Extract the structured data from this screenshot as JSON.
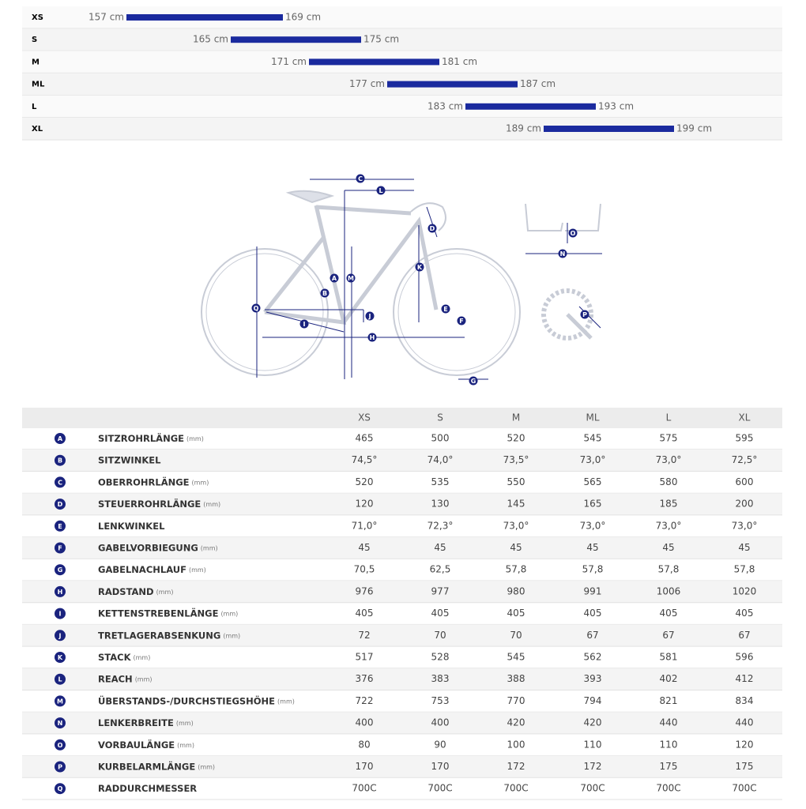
{
  "size_chart": {
    "rows": [
      {
        "size": "XS",
        "min": 157,
        "max": 169,
        "min_label": "157 cm",
        "max_label": "169 cm"
      },
      {
        "size": "S",
        "min": 165,
        "max": 175,
        "min_label": "165 cm",
        "max_label": "175 cm"
      },
      {
        "size": "M",
        "min": 171,
        "max": 181,
        "min_label": "171 cm",
        "max_label": "181 cm"
      },
      {
        "size": "ML",
        "min": 177,
        "max": 187,
        "min_label": "177 cm",
        "max_label": "187 cm"
      },
      {
        "size": "L",
        "min": 183,
        "max": 193,
        "min_label": "183 cm",
        "max_label": "193 cm"
      },
      {
        "size": "XL",
        "min": 189,
        "max": 199,
        "min_label": "189 cm",
        "max_label": "199 cm"
      }
    ]
  },
  "table": {
    "columns": [
      "XS",
      "S",
      "M",
      "ML",
      "L",
      "XL"
    ],
    "rows": [
      {
        "letter": "A",
        "name": "SITZROHRLÄNGE",
        "unit": "(mm)",
        "values": [
          "465",
          "500",
          "520",
          "545",
          "575",
          "595"
        ]
      },
      {
        "letter": "B",
        "name": "SITZWINKEL",
        "values": [
          "74,5°",
          "74,0°",
          "73,5°",
          "73,0°",
          "73,0°",
          "72,5°"
        ]
      },
      {
        "letter": "C",
        "name": "OBERROHRLÄNGE",
        "unit": "(mm)",
        "values": [
          "520",
          "535",
          "550",
          "565",
          "580",
          "600"
        ]
      },
      {
        "letter": "D",
        "name": "STEUERROHRLÄNGE",
        "unit": "(mm)",
        "values": [
          "120",
          "130",
          "145",
          "165",
          "185",
          "200"
        ]
      },
      {
        "letter": "E",
        "name": "LENKWINKEL",
        "values": [
          "71,0°",
          "72,3°",
          "73,0°",
          "73,0°",
          "73,0°",
          "73,0°"
        ]
      },
      {
        "letter": "F",
        "name": "GABELVORBIEGUNG",
        "unit": "(mm)",
        "values": [
          "45",
          "45",
          "45",
          "45",
          "45",
          "45"
        ]
      },
      {
        "letter": "G",
        "name": "GABELNACHLAUF",
        "unit": "(mm)",
        "values": [
          "70,5",
          "62,5",
          "57,8",
          "57,8",
          "57,8",
          "57,8"
        ]
      },
      {
        "letter": "H",
        "name": "RADSTAND",
        "unit": "(mm)",
        "values": [
          "976",
          "977",
          "980",
          "991",
          "1006",
          "1020"
        ]
      },
      {
        "letter": "I",
        "name": "KETTENSTREBENLÄNGE",
        "unit": "(mm)",
        "values": [
          "405",
          "405",
          "405",
          "405",
          "405",
          "405"
        ]
      },
      {
        "letter": "J",
        "name": "TRETLAGERABSENKUNG",
        "unit": "(mm)",
        "values": [
          "72",
          "70",
          "70",
          "67",
          "67",
          "67"
        ]
      },
      {
        "letter": "K",
        "name": "STACK",
        "unit": "(mm)",
        "values": [
          "517",
          "528",
          "545",
          "562",
          "581",
          "596"
        ]
      },
      {
        "letter": "L",
        "name": "REACH",
        "unit": "(mm)",
        "values": [
          "376",
          "383",
          "388",
          "393",
          "402",
          "412"
        ]
      },
      {
        "letter": "M",
        "name": "ÜBERSTANDS-/DURCHSTIEGSHÖHE",
        "unit": "(mm)",
        "values": [
          "722",
          "753",
          "770",
          "794",
          "821",
          "834"
        ]
      },
      {
        "letter": "N",
        "name": "LENKERBREITE",
        "unit": "(mm)",
        "values": [
          "400",
          "400",
          "420",
          "420",
          "440",
          "440"
        ]
      },
      {
        "letter": "O",
        "name": "VORBAULÄNGE",
        "unit": "(mm)",
        "values": [
          "80",
          "90",
          "100",
          "110",
          "110",
          "120"
        ]
      },
      {
        "letter": "P",
        "name": "KURBELARMLÄNGE",
        "unit": "(mm)",
        "values": [
          "170",
          "170",
          "172",
          "172",
          "175",
          "175"
        ]
      },
      {
        "letter": "Q",
        "name": "RADDURCHMESSER",
        "values": [
          "700C",
          "700C",
          "700C",
          "700C",
          "700C",
          "700C"
        ]
      }
    ]
  }
}
